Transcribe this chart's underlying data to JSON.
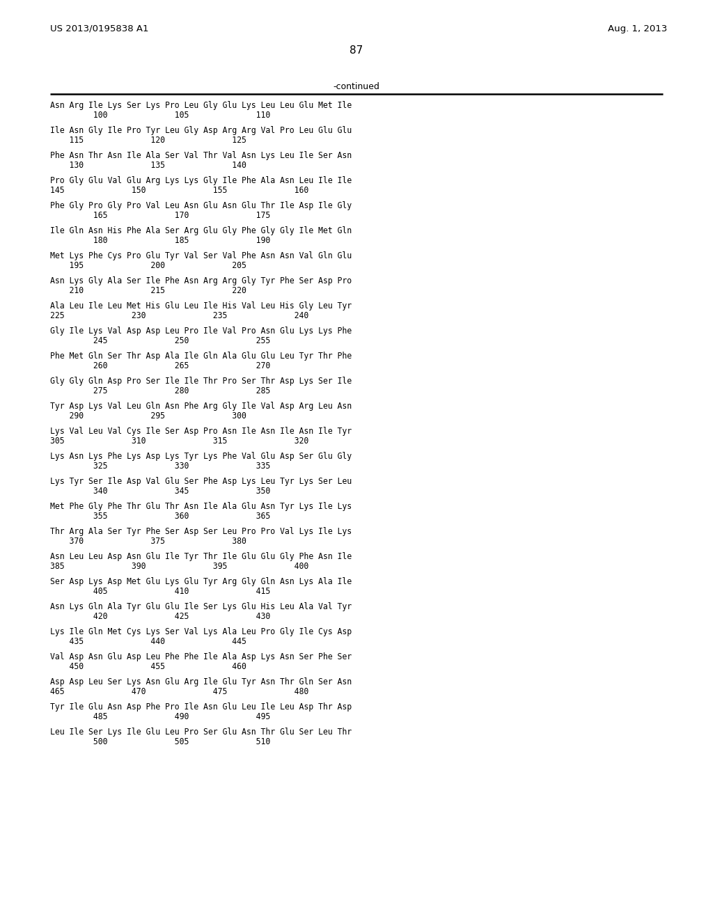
{
  "header_left": "US 2013/0195838 A1",
  "header_right": "Aug. 1, 2013",
  "page_number": "87",
  "continued_label": "-continued",
  "background_color": "#ffffff",
  "text_color": "#000000",
  "sequence_blocks": [
    {
      "seq": "Asn Arg Ile Lys Ser Lys Pro Leu Gly Glu Lys Leu Leu Glu Met Ile",
      "num_line": "         100              105              110"
    },
    {
      "seq": "Ile Asn Gly Ile Pro Tyr Leu Gly Asp Arg Arg Val Pro Leu Glu Glu",
      "num_line": "    115              120              125"
    },
    {
      "seq": "Phe Asn Thr Asn Ile Ala Ser Val Thr Val Asn Lys Leu Ile Ser Asn",
      "num_line": "    130              135              140"
    },
    {
      "seq": "Pro Gly Glu Val Glu Arg Lys Lys Gly Ile Phe Ala Asn Leu Ile Ile",
      "num_line": "145              150              155              160"
    },
    {
      "seq": "Phe Gly Pro Gly Pro Val Leu Asn Glu Asn Glu Thr Ile Asp Ile Gly",
      "num_line": "         165              170              175"
    },
    {
      "seq": "Ile Gln Asn His Phe Ala Ser Arg Glu Gly Phe Gly Gly Ile Met Gln",
      "num_line": "         180              185              190"
    },
    {
      "seq": "Met Lys Phe Cys Pro Glu Tyr Val Ser Val Phe Asn Asn Val Gln Glu",
      "num_line": "    195              200              205"
    },
    {
      "seq": "Asn Lys Gly Ala Ser Ile Phe Asn Arg Arg Gly Tyr Phe Ser Asp Pro",
      "num_line": "    210              215              220"
    },
    {
      "seq": "Ala Leu Ile Leu Met His Glu Leu Ile His Val Leu His Gly Leu Tyr",
      "num_line": "225              230              235              240"
    },
    {
      "seq": "Gly Ile Lys Val Asp Asp Leu Pro Ile Val Pro Asn Glu Lys Lys Phe",
      "num_line": "         245              250              255"
    },
    {
      "seq": "Phe Met Gln Ser Thr Asp Ala Ile Gln Ala Glu Glu Leu Tyr Thr Phe",
      "num_line": "         260              265              270"
    },
    {
      "seq": "Gly Gly Gln Asp Pro Ser Ile Ile Thr Pro Ser Thr Asp Lys Ser Ile",
      "num_line": "         275              280              285"
    },
    {
      "seq": "Tyr Asp Lys Val Leu Gln Asn Phe Arg Gly Ile Val Asp Arg Leu Asn",
      "num_line": "    290              295              300"
    },
    {
      "seq": "Lys Val Leu Val Cys Ile Ser Asp Pro Asn Ile Asn Ile Asn Ile Tyr",
      "num_line": "305              310              315              320"
    },
    {
      "seq": "Lys Asn Lys Phe Lys Asp Lys Tyr Lys Phe Val Glu Asp Ser Glu Gly",
      "num_line": "         325              330              335"
    },
    {
      "seq": "Lys Tyr Ser Ile Asp Val Glu Ser Phe Asp Lys Leu Tyr Lys Ser Leu",
      "num_line": "         340              345              350"
    },
    {
      "seq": "Met Phe Gly Phe Thr Glu Thr Asn Ile Ala Glu Asn Tyr Lys Ile Lys",
      "num_line": "         355              360              365"
    },
    {
      "seq": "Thr Arg Ala Ser Tyr Phe Ser Asp Ser Leu Pro Pro Val Lys Ile Lys",
      "num_line": "    370              375              380"
    },
    {
      "seq": "Asn Leu Leu Asp Asn Glu Ile Tyr Thr Ile Glu Glu Gly Phe Asn Ile",
      "num_line": "385              390              395              400"
    },
    {
      "seq": "Ser Asp Lys Asp Met Glu Lys Glu Tyr Arg Gly Gln Asn Lys Ala Ile",
      "num_line": "         405              410              415"
    },
    {
      "seq": "Asn Lys Gln Ala Tyr Glu Glu Ile Ser Lys Glu His Leu Ala Val Tyr",
      "num_line": "         420              425              430"
    },
    {
      "seq": "Lys Ile Gln Met Cys Lys Ser Val Lys Ala Leu Pro Gly Ile Cys Asp",
      "num_line": "    435              440              445"
    },
    {
      "seq": "Val Asp Asn Glu Asp Leu Phe Phe Ile Ala Asp Lys Asn Ser Phe Ser",
      "num_line": "    450              455              460"
    },
    {
      "seq": "Asp Asp Leu Ser Lys Asn Glu Arg Ile Glu Tyr Asn Thr Gln Ser Asn",
      "num_line": "465              470              475              480"
    },
    {
      "seq": "Tyr Ile Glu Asn Asp Phe Pro Ile Asn Glu Leu Ile Leu Asp Thr Asp",
      "num_line": "         485              490              495"
    },
    {
      "seq": "Leu Ile Ser Lys Ile Glu Leu Pro Ser Glu Asn Thr Glu Ser Leu Thr",
      "num_line": "         500              505              510"
    }
  ]
}
